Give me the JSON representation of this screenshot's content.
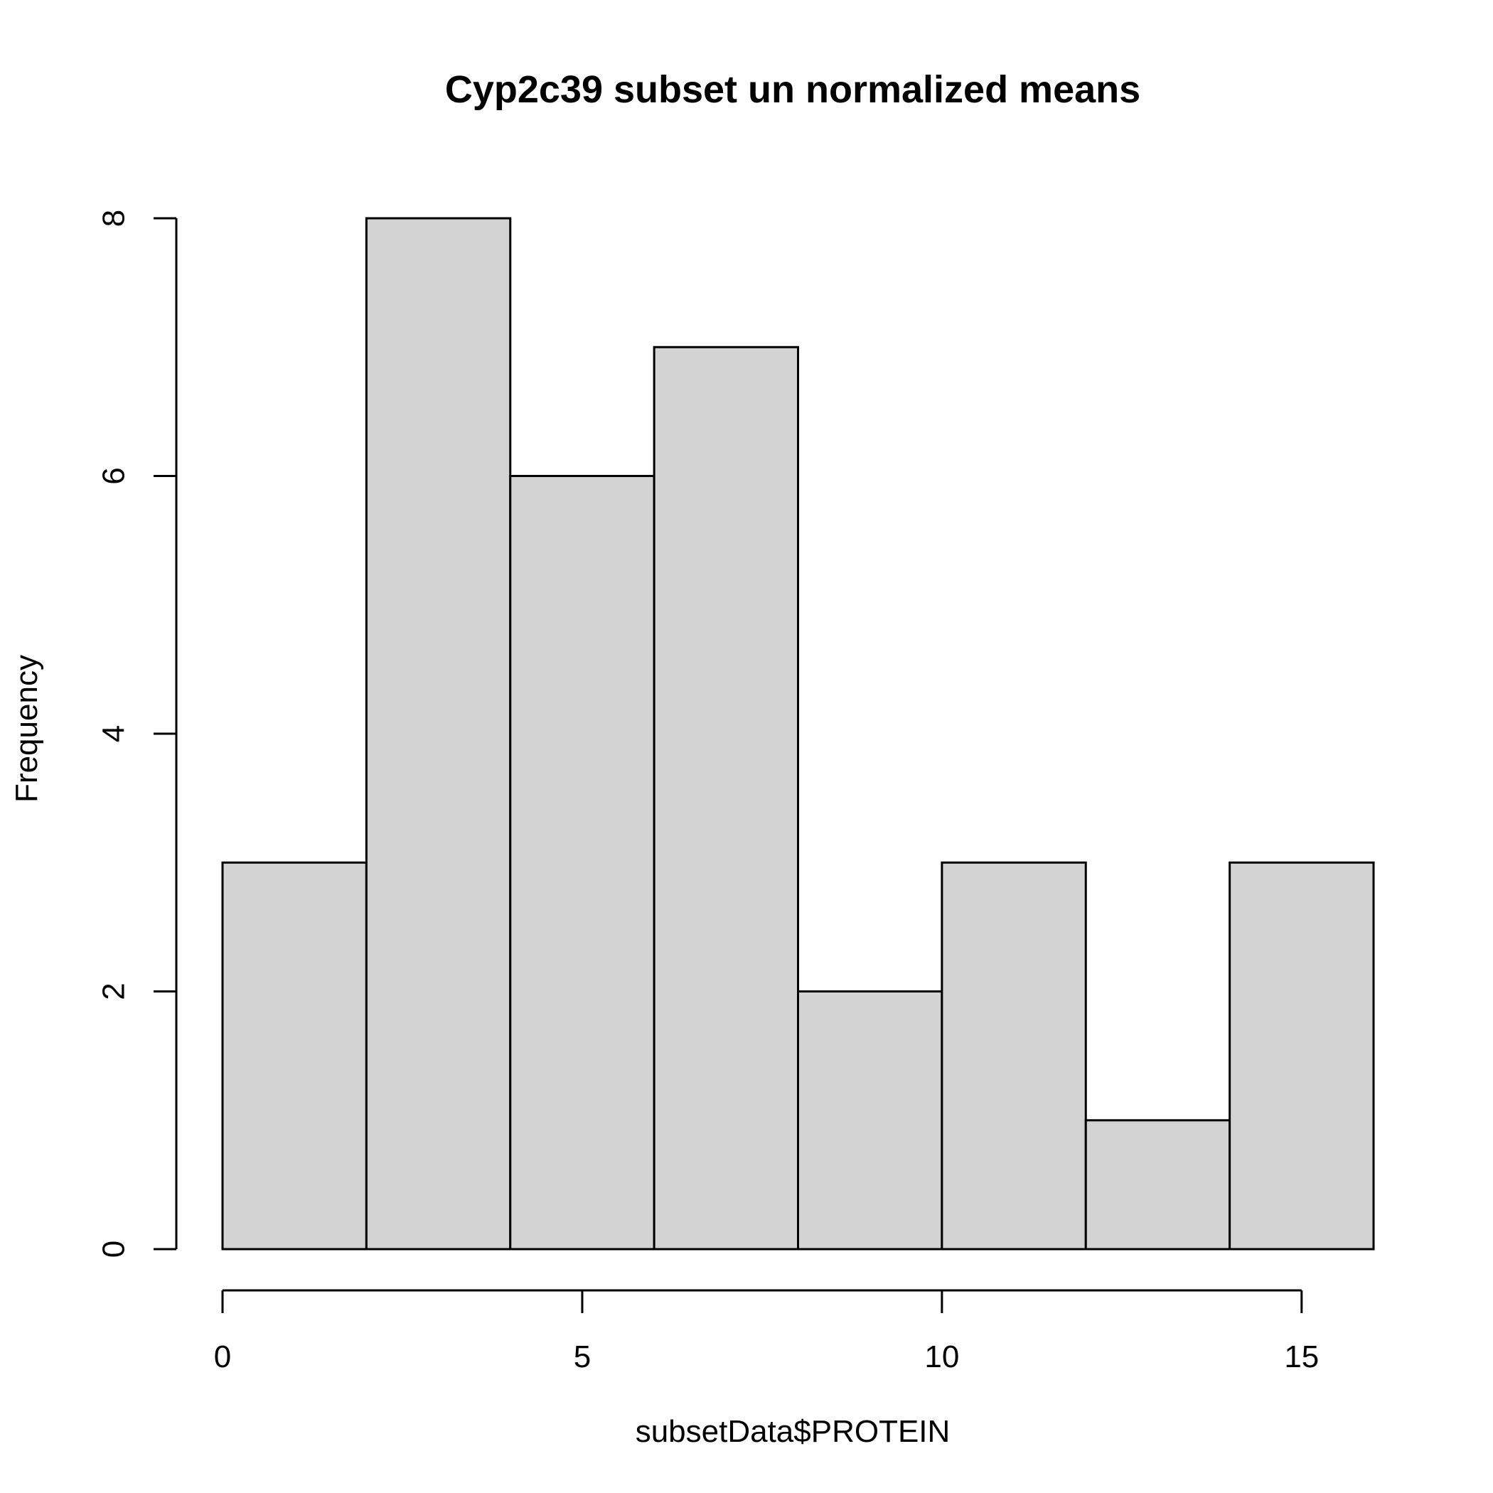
{
  "chart_data": {
    "type": "histogram",
    "title": "Cyp2c39 subset un normalized means",
    "xlabel": "subsetData$PROTEIN",
    "ylabel": "Frequency",
    "bins": [
      {
        "start": 0,
        "end": 2,
        "count": 3
      },
      {
        "start": 2,
        "end": 4,
        "count": 8
      },
      {
        "start": 4,
        "end": 6,
        "count": 6
      },
      {
        "start": 6,
        "end": 8,
        "count": 7
      },
      {
        "start": 8,
        "end": 10,
        "count": 2
      },
      {
        "start": 10,
        "end": 12,
        "count": 3
      },
      {
        "start": 12,
        "end": 14,
        "count": 1
      },
      {
        "start": 14,
        "end": 16,
        "count": 3
      }
    ],
    "xlim": [
      0,
      16
    ],
    "ylim": [
      0,
      8
    ],
    "x_ticks": [
      0,
      5,
      10,
      15
    ],
    "y_ticks": [
      0,
      2,
      4,
      6,
      8
    ],
    "x_tick_labels": [
      "0",
      "5",
      "10",
      "15"
    ],
    "y_tick_labels": [
      "0",
      "2",
      "4",
      "6",
      "8"
    ],
    "bar_fill": "#d3d3d3",
    "bar_stroke": "#000000",
    "grid": false,
    "legend": "none"
  }
}
